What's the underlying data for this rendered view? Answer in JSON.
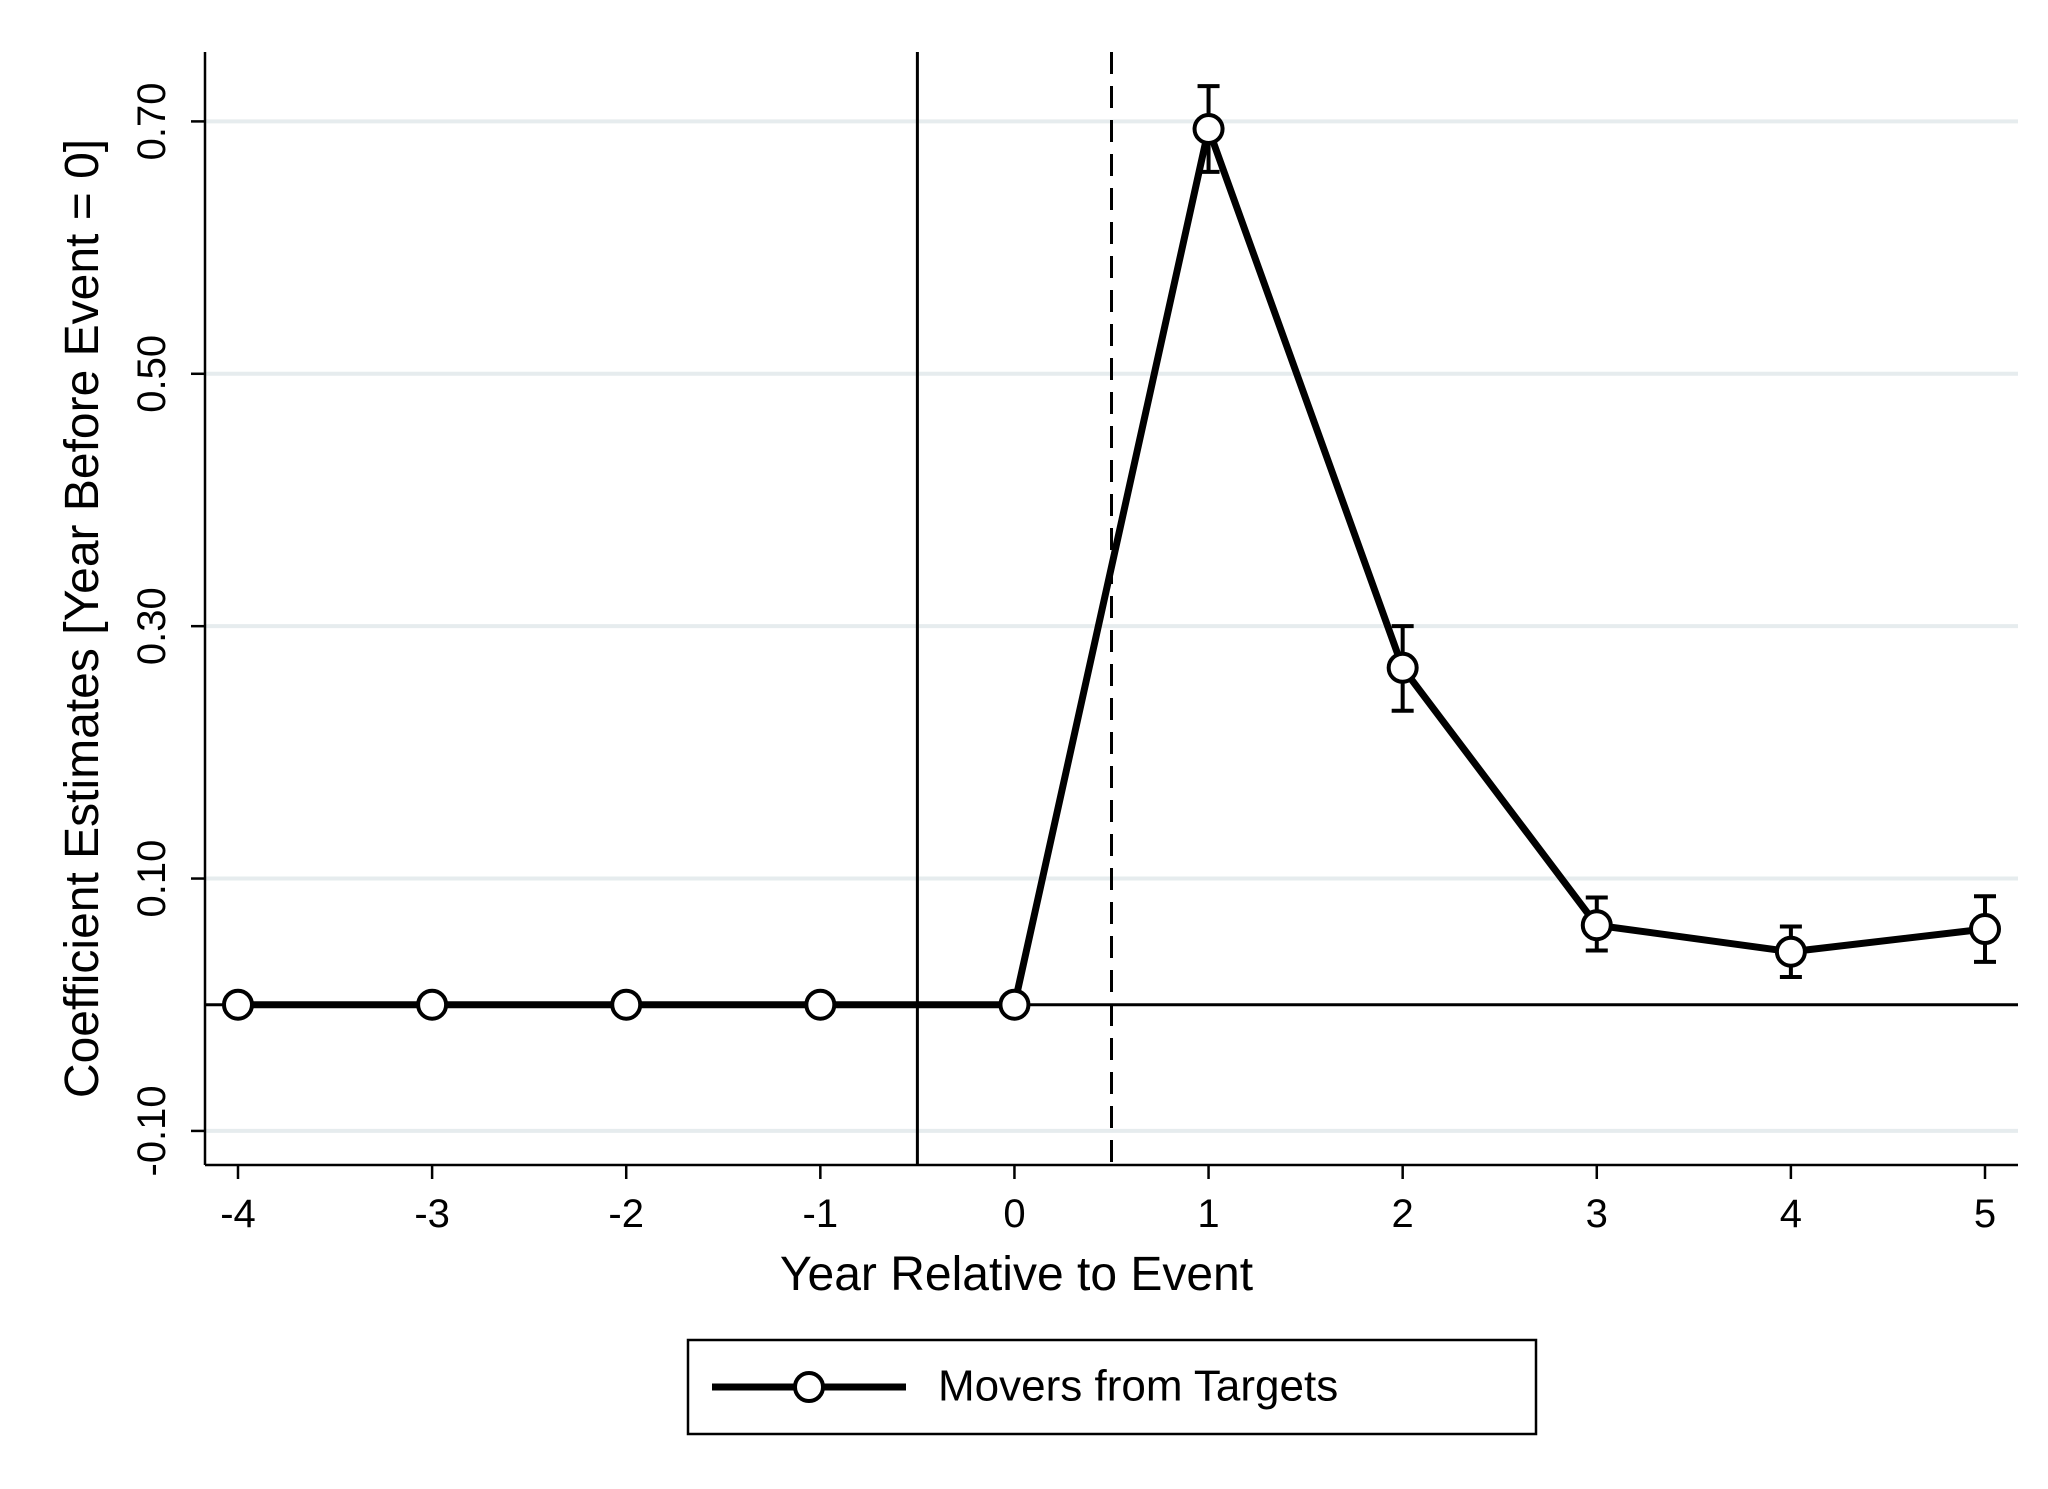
{
  "chart_data": {
    "type": "line",
    "title": "",
    "xlabel": "Year Relative to Event",
    "ylabel": "Coefficient Estimates [Year Before Event = 0]",
    "xlim": [
      -4.17,
      5.17
    ],
    "ylim": [
      -0.127,
      0.755
    ],
    "x_ticks": [
      -4,
      -3,
      -2,
      -1,
      0,
      1,
      2,
      3,
      4,
      5
    ],
    "x_tick_labels": [
      "-4",
      "-3",
      "-2",
      "-1",
      "0",
      "1",
      "2",
      "3",
      "4",
      "5"
    ],
    "y_ticks": [
      -0.1,
      0.1,
      0.3,
      0.5,
      0.7
    ],
    "y_tick_labels": [
      "-0.10",
      "0.10",
      "0.30",
      "0.50",
      "0.70"
    ],
    "grid": "horizontal",
    "reference_lines": {
      "y_zero": 0,
      "vertical_solid_x": -0.5,
      "vertical_dashed_x": 0.5
    },
    "legend": {
      "position": "bottom-center",
      "entries": [
        "Movers from Targets"
      ]
    },
    "colors": {
      "series": "#000000",
      "grid": "#e6ecee",
      "background": "#ffffff"
    },
    "series": [
      {
        "name": "Movers from Targets",
        "marker": "hollow-circle",
        "x": [
          -4,
          -3,
          -2,
          -1,
          0,
          1,
          2,
          3,
          4,
          5
        ],
        "y": [
          0,
          0,
          0,
          0,
          0,
          0.694,
          0.267,
          0.063,
          0.042,
          0.06
        ],
        "ci_low": [
          null,
          null,
          null,
          null,
          null,
          0.66,
          0.233,
          0.043,
          0.022,
          0.034
        ],
        "ci_high": [
          null,
          null,
          null,
          null,
          null,
          0.728,
          0.3,
          0.085,
          0.062,
          0.086
        ]
      }
    ]
  }
}
